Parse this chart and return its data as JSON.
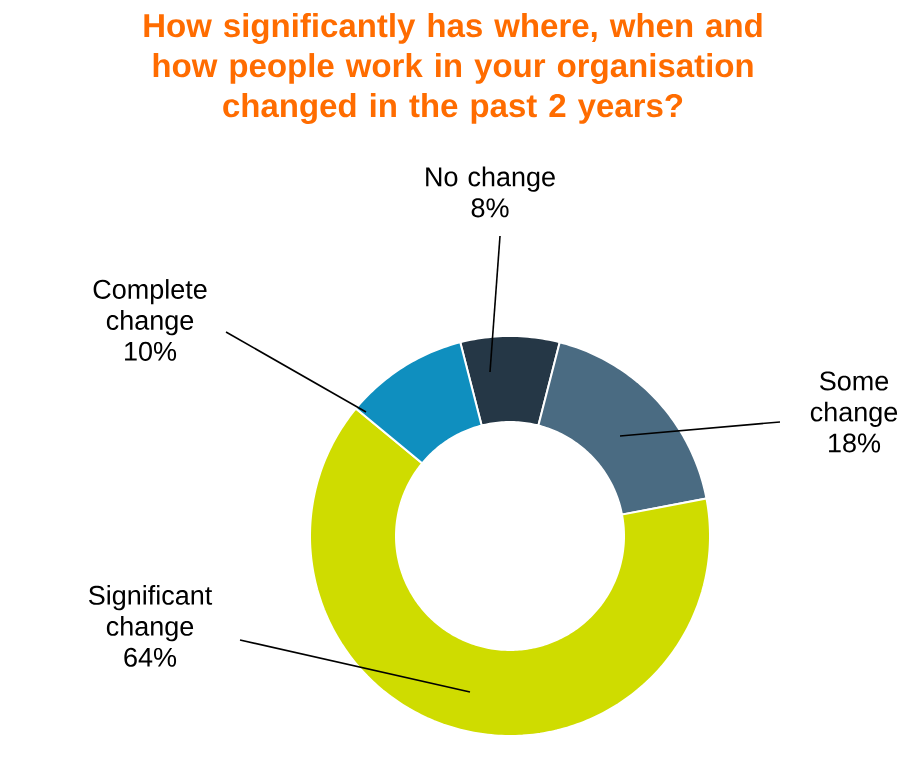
{
  "chart_data": {
    "type": "donut",
    "title": "How significantly has where, when and how people work in your organisation changed in the past 2 years?",
    "categories": [
      "No change",
      "Some change",
      "Significant change",
      "Complete change"
    ],
    "values": [
      8,
      18,
      64,
      10
    ],
    "value_labels": [
      "8%",
      "18%",
      "64%",
      "10%"
    ],
    "colors": [
      "#253746",
      "#4a6b82",
      "#cfdc00",
      "#0f8fbf"
    ]
  }
}
